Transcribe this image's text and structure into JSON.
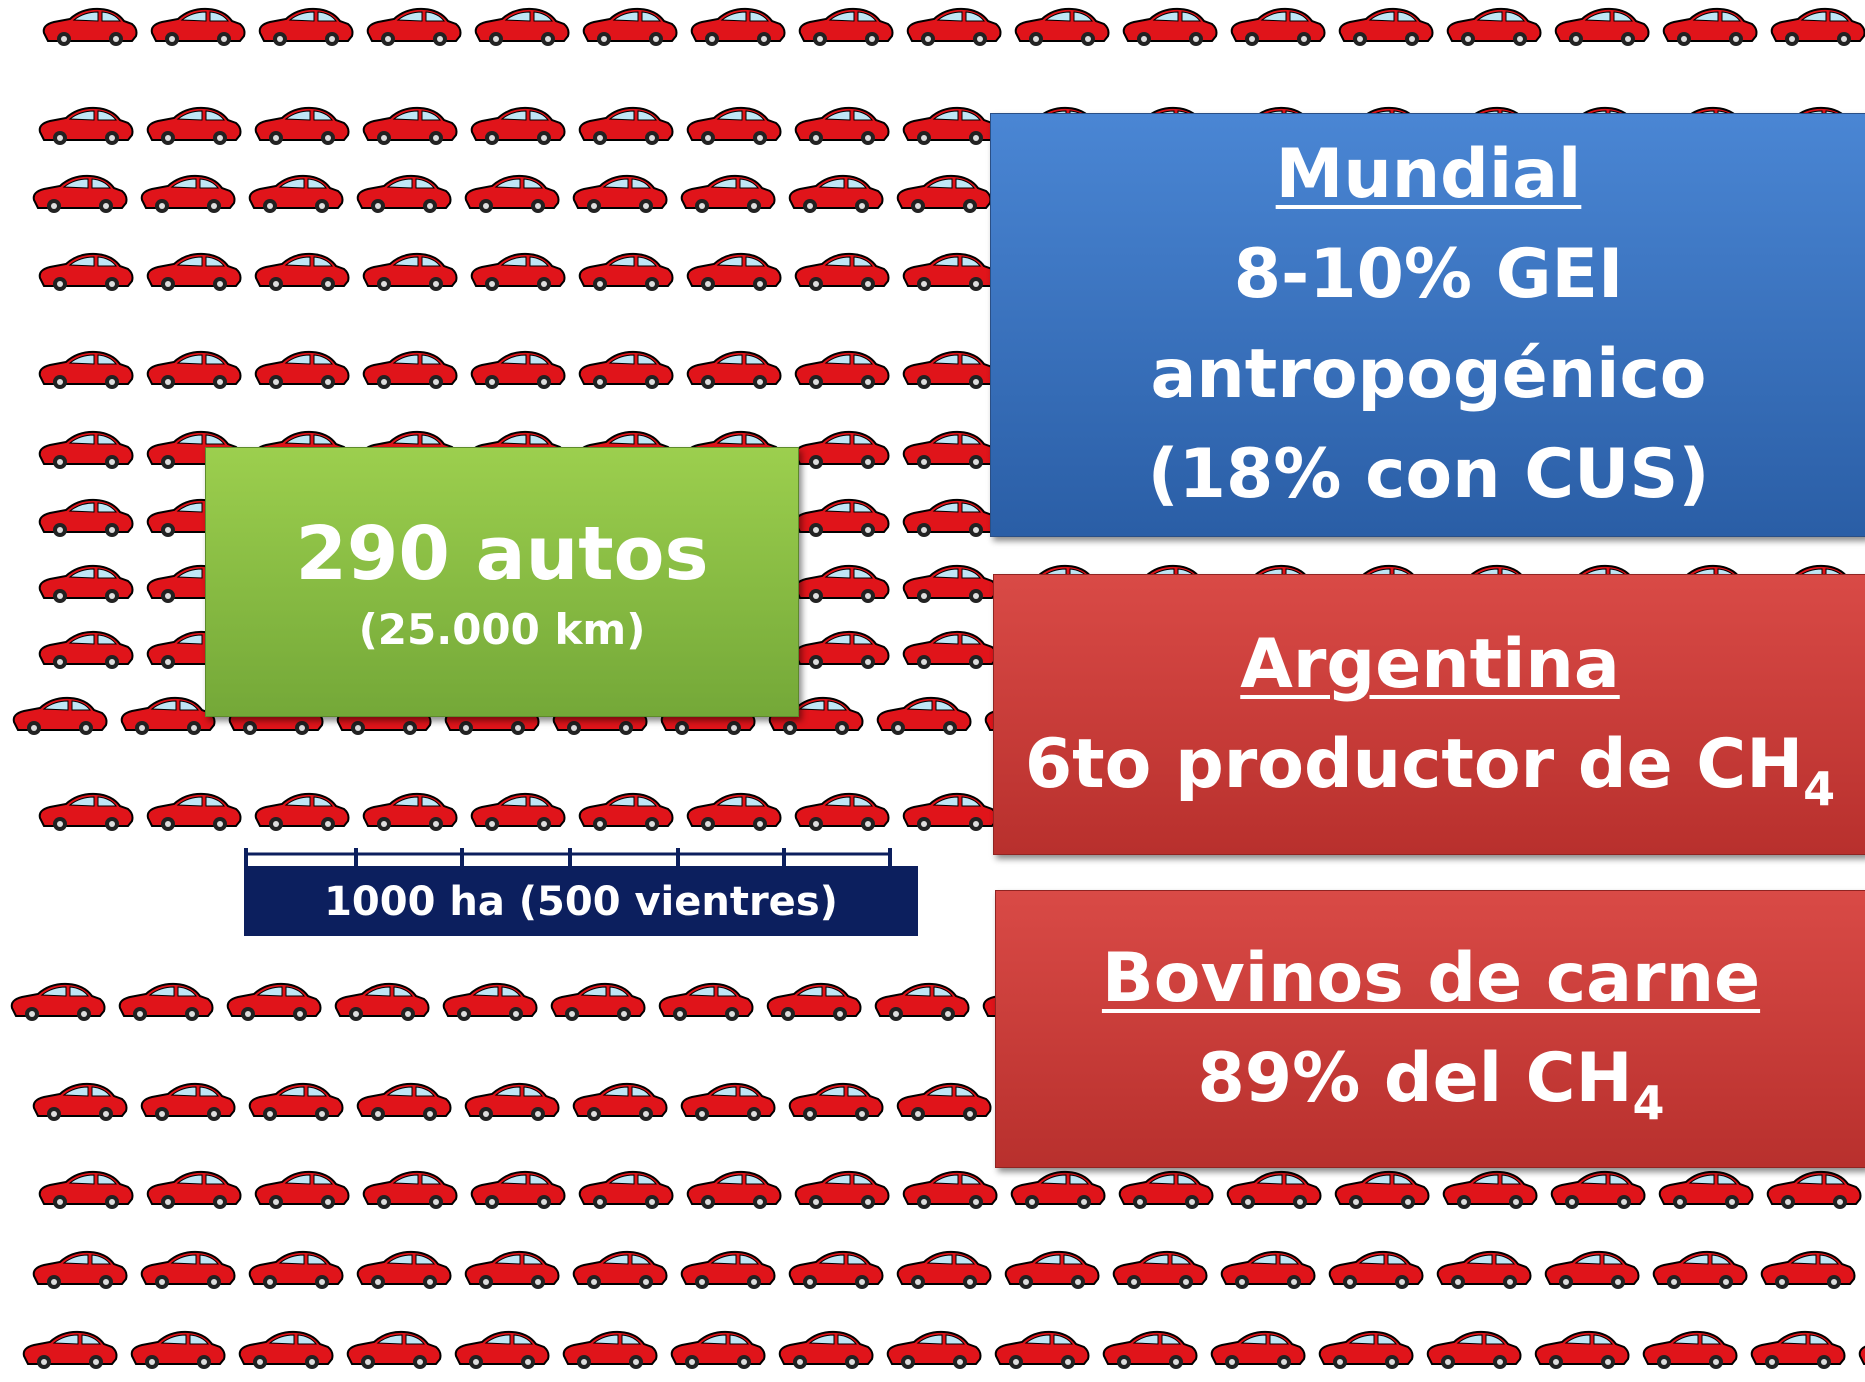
{
  "cattle_slide": {
    "herd_box": {
      "count": "290 autos",
      "distance": "(25.000 km)"
    },
    "scale_bar": {
      "label": "1000 ha (500 vientres)"
    },
    "world_box": {
      "heading": "Mundial",
      "lines": [
        "8-10% GEI",
        "antropogénico",
        "(18% con CUS)"
      ]
    },
    "argentina_box": {
      "heading": "Argentina",
      "line": "6to productor de CH",
      "subscript": "4"
    },
    "beef_box": {
      "heading": "Bovinos de carne",
      "line": "89% del CH",
      "subscript": "4"
    }
  }
}
